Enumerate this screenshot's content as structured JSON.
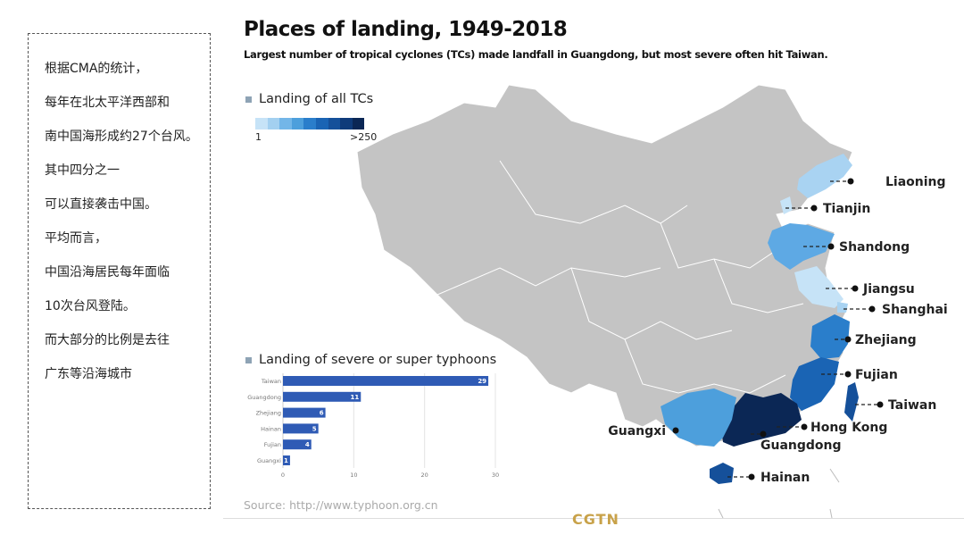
{
  "sidebar_text": [
    "根据CMA的统计，",
    "每年在北太平洋西部和",
    "南中国海形成约27个台风。",
    "其中四分之一",
    "可以直接袭击中国。",
    "平均而言，",
    "中国沿海居民每年面临",
    "10次台风登陆。",
    "而大部分的比例是去往",
    "广东等沿海城市"
  ],
  "title": "Places of landing, 1949-2018",
  "subtitle": "Largest number of tropical cyclones (TCs) made landfall in Guangdong, but most severe often hit Taiwan.",
  "map_legend": {
    "title": "Landing of all TCs",
    "min_label": "1",
    "max_label": ">250",
    "colors": [
      "#c6e3f7",
      "#a3d0f0",
      "#73b6e8",
      "#4d9fdc",
      "#2a7ecb",
      "#1a64b4",
      "#15509a",
      "#0f3b7a",
      "#0b2755"
    ]
  },
  "map_labels": [
    "Liaoning",
    "Tianjin",
    "Shandong",
    "Jiangsu",
    "Shanghai",
    "Zhejiang",
    "Fujian",
    "Taiwan",
    "Hong Kong",
    "Guangdong",
    "Guangxi",
    "Hainan"
  ],
  "chart_data": {
    "type": "bar",
    "orientation": "horizontal",
    "title": "Landing of severe or super typhoons",
    "categories": [
      "Taiwan",
      "Guangdong",
      "Zhejiang",
      "Hainan",
      "Fujian",
      "Guangxi"
    ],
    "values": [
      29,
      11,
      6,
      5,
      4,
      1
    ],
    "xlim": [
      0,
      30
    ],
    "xticks": [
      0,
      10,
      20,
      30
    ],
    "grid": true,
    "bar_color": "#2f5bb5"
  },
  "source": "Source: http://www.typhoon.org.cn",
  "watermark": "CGTN"
}
